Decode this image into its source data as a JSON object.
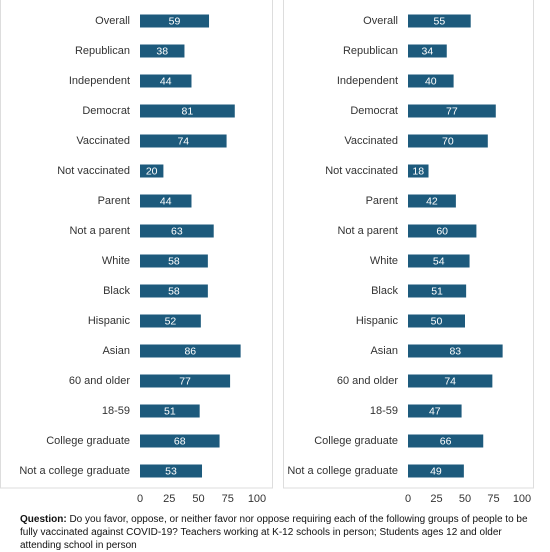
{
  "chart_data": [
    {
      "type": "bar",
      "orientation": "horizontal",
      "categories": [
        "Overall",
        "Republican",
        "Independent",
        "Democrat",
        "Vaccinated",
        "Not vaccinated",
        "Parent",
        "Not a parent",
        "White",
        "Black",
        "Hispanic",
        "Asian",
        "60 and older",
        "18-59",
        "College graduate",
        "Not a college graduate"
      ],
      "values": [
        59,
        38,
        44,
        81,
        74,
        20,
        44,
        63,
        58,
        58,
        52,
        86,
        77,
        51,
        68,
        53
      ],
      "color": "#1d5a7c",
      "xlim": [
        0,
        100
      ],
      "xticks": [
        0,
        25,
        50,
        75,
        100
      ]
    },
    {
      "type": "bar",
      "orientation": "horizontal",
      "categories": [
        "Overall",
        "Republican",
        "Independent",
        "Democrat",
        "Vaccinated",
        "Not vaccinated",
        "Parent",
        "Not a parent",
        "White",
        "Black",
        "Hispanic",
        "Asian",
        "60 and older",
        "18-59",
        "College graduate",
        "Not a college graduate"
      ],
      "values": [
        55,
        34,
        40,
        77,
        70,
        18,
        42,
        60,
        54,
        51,
        50,
        83,
        74,
        47,
        66,
        49
      ],
      "color": "#1d5a7c",
      "xlim": [
        0,
        100
      ],
      "xticks": [
        0,
        25,
        50,
        75,
        100
      ]
    }
  ],
  "question": {
    "label": "Question:",
    "text": "Do you favor, oppose, or neither favor nor oppose requiring each of the following groups of people to be fully vaccinated against COVID-19? Teachers working at K-12 schools in person; Students ages 12 and older attending school in person"
  }
}
